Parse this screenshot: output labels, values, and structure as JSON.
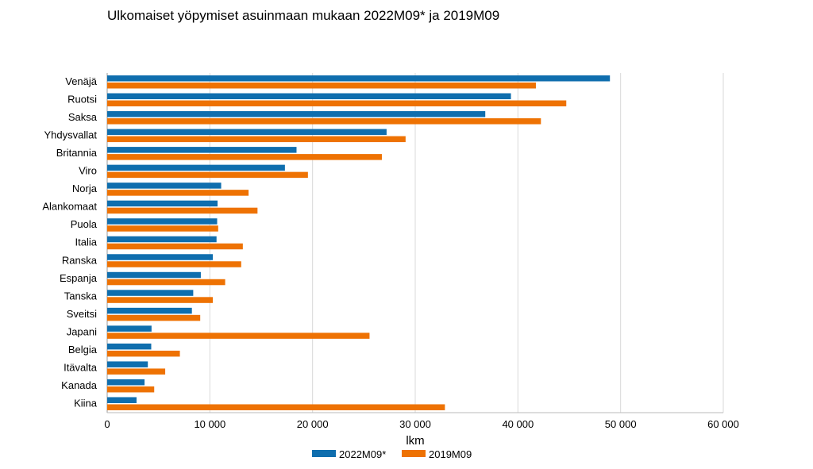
{
  "chart_data": {
    "type": "bar",
    "orientation": "horizontal",
    "title": "Ulkomaiset yöpymiset asuinmaan mukaan 2022M09* ja 2019M09",
    "xlabel": "lkm",
    "ylabel": "",
    "xlim": [
      0,
      60000
    ],
    "xticks": [
      0,
      10000,
      20000,
      30000,
      40000,
      50000,
      60000
    ],
    "xtick_labels": [
      "0",
      "10 000",
      "20 000",
      "30 000",
      "40 000",
      "50 000",
      "60 000"
    ],
    "grid": true,
    "legend_position": "bottom",
    "categories": [
      "Venäjä",
      "Ruotsi",
      "Saksa",
      "Yhdysvallat",
      "Britannia",
      "Viro",
      "Norja",
      "Alankomaat",
      "Puola",
      "Italia",
      "Ranska",
      "Espanja",
      "Tanska",
      "Sveitsi",
      "Japani",
      "Belgia",
      "Itävalta",
      "Kanada",
      "Kiina"
    ],
    "series": [
      {
        "name": "2022M09*",
        "color": "#0f6eae",
        "values": [
          48960,
          39320,
          36820,
          27210,
          18440,
          17310,
          11100,
          10750,
          10710,
          10650,
          10290,
          9120,
          8380,
          8250,
          4320,
          4290,
          3960,
          3640,
          2860
        ]
      },
      {
        "name": "2019M09",
        "color": "#ee7203",
        "values": [
          41750,
          44710,
          42240,
          29060,
          26750,
          19550,
          13770,
          14640,
          10810,
          13210,
          13050,
          11490,
          10290,
          9060,
          25550,
          7080,
          5650,
          4580,
          32890
        ]
      }
    ]
  }
}
